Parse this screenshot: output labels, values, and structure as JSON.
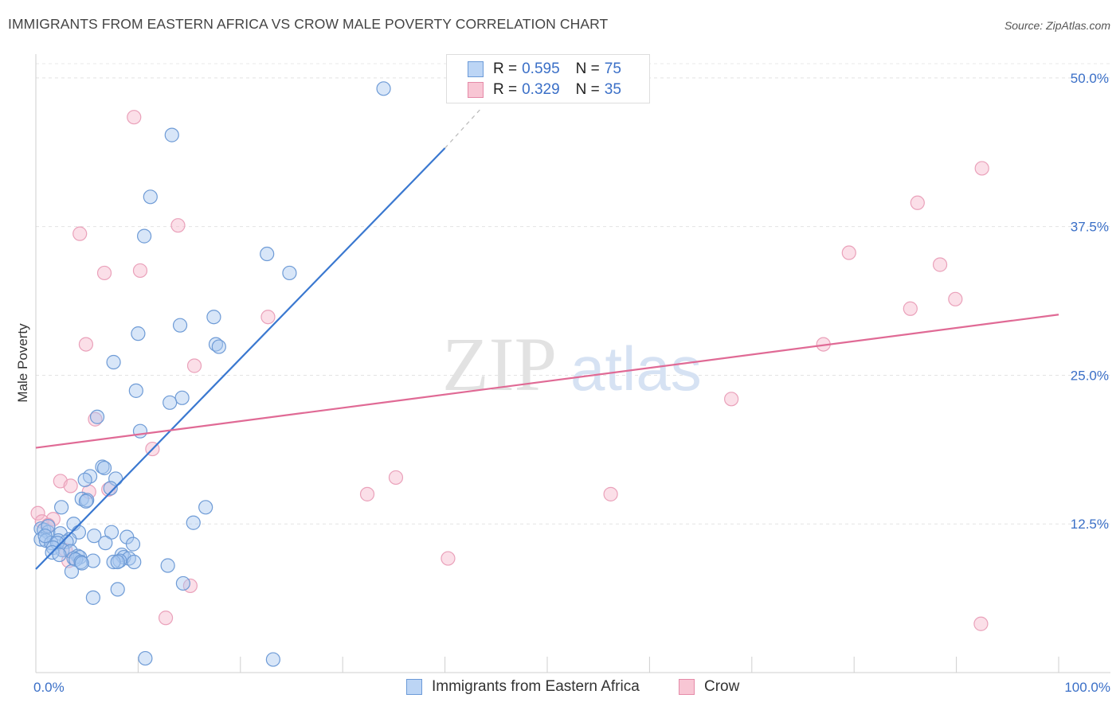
{
  "header": {
    "title": "IMMIGRANTS FROM EASTERN AFRICA VS CROW MALE POVERTY CORRELATION CHART",
    "source": "Source: ZipAtlas.com"
  },
  "legend": {
    "items": [
      {
        "r_label": "R =",
        "r_value": "0.595",
        "n_label": "N =",
        "n_value": "75"
      },
      {
        "r_label": "R =",
        "r_value": "0.329",
        "n_label": "N =",
        "n_value": "35"
      }
    ]
  },
  "bottom_legend": {
    "series1": "Immigrants from Eastern Africa",
    "series2": "Crow"
  },
  "watermark": {
    "zip": "ZIP",
    "atlas": "atlas"
  },
  "colors": {
    "blue": "#3a78d0",
    "blue_fill": "#a8c8f0",
    "pink": "#e06a95",
    "pink_fill": "#f6b8cb",
    "grid": "#e4e4e4",
    "axis_text": "#3a6fc7"
  },
  "chart_data": {
    "type": "scatter",
    "title": "IMMIGRANTS FROM EASTERN AFRICA VS CROW MALE POVERTY CORRELATION CHART",
    "xlabel": "",
    "ylabel": "Male Poverty",
    "xlim": [
      0,
      100
    ],
    "ylim": [
      0,
      52
    ],
    "x_tick_labels": [
      "0.0%",
      "100.0%"
    ],
    "y_ticks": [
      12.5,
      25.0,
      37.5,
      50.0
    ],
    "y_tick_labels": [
      "12.5%",
      "25.0%",
      "37.5%",
      "50.0%"
    ],
    "series": [
      {
        "name": "Immigrants from Eastern Africa",
        "R": 0.595,
        "N": 75,
        "trend": {
          "x": [
            0,
            40
          ],
          "y": [
            8.7,
            44.1
          ]
        },
        "trend_dashed": {
          "x": [
            40,
            43.6
          ],
          "y": [
            44.1,
            47.5
          ]
        },
        "points": [
          [
            34,
            49.1
          ],
          [
            13.3,
            45.2
          ],
          [
            11.2,
            40.0
          ],
          [
            10.6,
            36.7
          ],
          [
            22.6,
            35.2
          ],
          [
            24.8,
            33.6
          ],
          [
            17.4,
            29.9
          ],
          [
            14.1,
            29.2
          ],
          [
            10.0,
            28.5
          ],
          [
            17.6,
            27.6
          ],
          [
            17.9,
            27.4
          ],
          [
            7.6,
            26.1
          ],
          [
            9.8,
            23.7
          ],
          [
            14.3,
            23.1
          ],
          [
            13.1,
            22.7
          ],
          [
            6.0,
            21.5
          ],
          [
            10.2,
            20.3
          ],
          [
            6.5,
            17.3
          ],
          [
            6.7,
            17.2
          ],
          [
            5.3,
            16.5
          ],
          [
            7.8,
            16.3
          ],
          [
            4.8,
            16.2
          ],
          [
            7.3,
            15.5
          ],
          [
            4.5,
            14.6
          ],
          [
            5.0,
            14.5
          ],
          [
            4.9,
            14.4
          ],
          [
            16.6,
            13.9
          ],
          [
            2.5,
            13.9
          ],
          [
            15.4,
            12.6
          ],
          [
            3.7,
            12.5
          ],
          [
            0.5,
            12.1
          ],
          [
            0.8,
            12.0
          ],
          [
            1.2,
            11.8
          ],
          [
            4.2,
            11.8
          ],
          [
            2.4,
            11.7
          ],
          [
            7.4,
            11.8
          ],
          [
            5.7,
            11.5
          ],
          [
            8.9,
            11.4
          ],
          [
            0.5,
            11.2
          ],
          [
            3.3,
            11.2
          ],
          [
            1.0,
            11.1
          ],
          [
            2.2,
            11.1
          ],
          [
            3.0,
            11.0
          ],
          [
            1.5,
            10.9
          ],
          [
            2.1,
            10.9
          ],
          [
            6.8,
            10.9
          ],
          [
            9.5,
            10.8
          ],
          [
            1.7,
            10.5
          ],
          [
            2.6,
            10.3
          ],
          [
            3.4,
            10.2
          ],
          [
            1.6,
            10.1
          ],
          [
            8.4,
            9.9
          ],
          [
            2.3,
            9.9
          ],
          [
            4.1,
            9.8
          ],
          [
            4.3,
            9.7
          ],
          [
            8.6,
            9.7
          ],
          [
            3.7,
            9.6
          ],
          [
            9.1,
            9.6
          ],
          [
            3.9,
            9.5
          ],
          [
            8.2,
            9.4
          ],
          [
            5.6,
            9.4
          ],
          [
            7.6,
            9.3
          ],
          [
            4.4,
            9.3
          ],
          [
            9.6,
            9.3
          ],
          [
            4.5,
            9.2
          ],
          [
            8.0,
            9.3
          ],
          [
            12.9,
            9.0
          ],
          [
            3.5,
            8.5
          ],
          [
            14.4,
            7.5
          ],
          [
            8.0,
            7.0
          ],
          [
            5.6,
            6.3
          ],
          [
            10.7,
            1.2
          ],
          [
            23.2,
            1.1
          ],
          [
            1.2,
            12.3
          ],
          [
            0.9,
            11.5
          ]
        ]
      },
      {
        "name": "Crow",
        "R": 0.329,
        "N": 35,
        "trend": {
          "x": [
            0,
            100
          ],
          "y": [
            18.9,
            30.1
          ]
        },
        "points": [
          [
            9.6,
            46.7
          ],
          [
            92.5,
            42.4
          ],
          [
            86.2,
            39.5
          ],
          [
            13.9,
            37.6
          ],
          [
            4.3,
            36.9
          ],
          [
            79.5,
            35.3
          ],
          [
            10.2,
            33.8
          ],
          [
            6.7,
            33.6
          ],
          [
            88.4,
            34.3
          ],
          [
            89.9,
            31.4
          ],
          [
            85.5,
            30.6
          ],
          [
            22.7,
            29.9
          ],
          [
            4.9,
            27.6
          ],
          [
            77.0,
            27.6
          ],
          [
            15.5,
            25.8
          ],
          [
            68.0,
            23.0
          ],
          [
            5.8,
            21.3
          ],
          [
            11.4,
            18.8
          ],
          [
            35.2,
            16.4
          ],
          [
            2.4,
            16.1
          ],
          [
            3.4,
            15.7
          ],
          [
            5.2,
            15.2
          ],
          [
            7.1,
            15.4
          ],
          [
            32.4,
            15.0
          ],
          [
            56.2,
            15.0
          ],
          [
            0.2,
            13.4
          ],
          [
            1.7,
            12.9
          ],
          [
            0.6,
            12.7
          ],
          [
            1.2,
            12.4
          ],
          [
            2.9,
            10.3
          ],
          [
            3.2,
            9.4
          ],
          [
            40.3,
            9.6
          ],
          [
            15.1,
            7.3
          ],
          [
            12.7,
            4.6
          ],
          [
            92.4,
            4.1
          ]
        ]
      }
    ]
  }
}
